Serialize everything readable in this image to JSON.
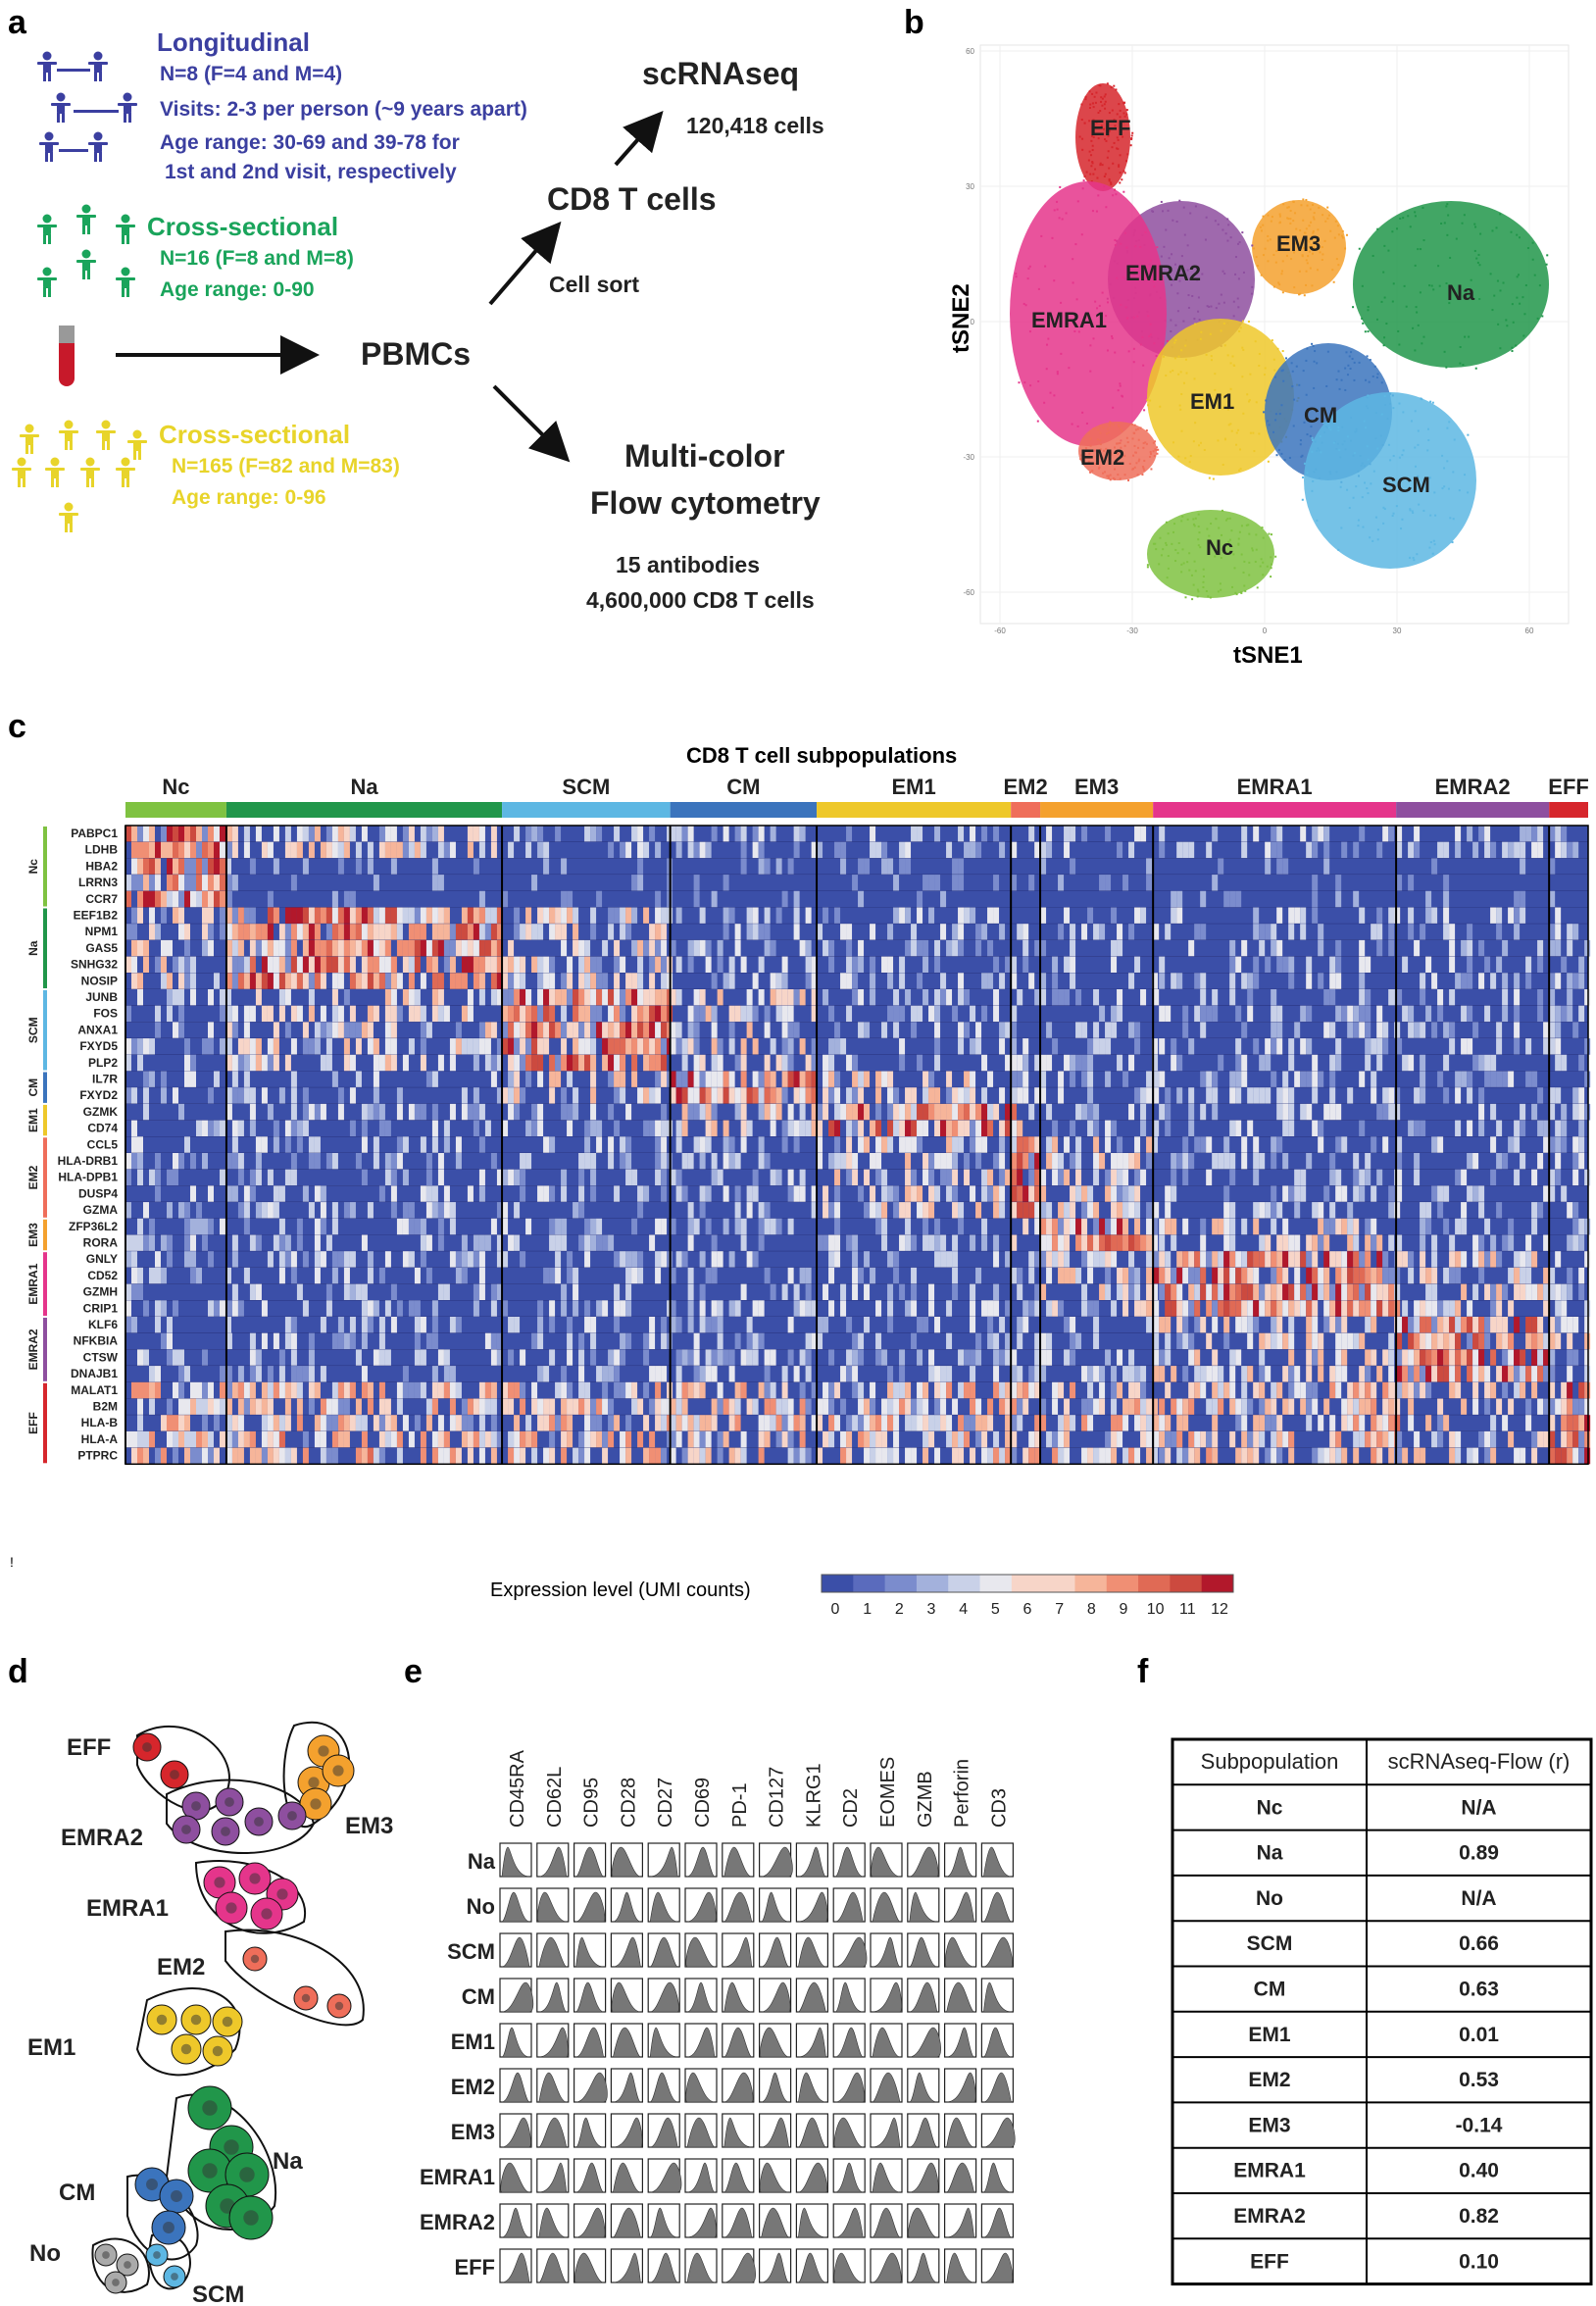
{
  "panel_labels": {
    "a": "a",
    "b": "b",
    "c": "c",
    "d": "d",
    "e": "e",
    "f": "f"
  },
  "colors": {
    "longitudinal": "#3b3fa0",
    "cross1": "#1aa45b",
    "cross2": "#e8d42a",
    "Nc": "#7fc241",
    "Na": "#21964a",
    "SCM": "#5db7e3",
    "CM": "#3b74bd",
    "EM1": "#eec82a",
    "EM2": "#ef6e5a",
    "EM3": "#f4a12e",
    "EMRA1": "#e5358b",
    "EMRA2": "#8e4f9f",
    "EFF": "#d6262c",
    "heat_low": "#3b4fa8",
    "heat_high": "#b2182b"
  },
  "panel_a": {
    "longitudinal": {
      "title": "Longitudinal",
      "lines": [
        "N=8 (F=4 and M=4)",
        "Visits: 2-3 per person (~9 years apart)",
        "Age range: 30-69 and 39-78 for",
        "1st and 2nd visit, respectively"
      ]
    },
    "cross1": {
      "title": "Cross-sectional",
      "lines": [
        "N=16 (F=8 and M=8)",
        "Age range: 0-90"
      ]
    },
    "cross2": {
      "title": "Cross-sectional",
      "lines": [
        "N=165 (F=82 and M=83)",
        "Age range: 0-96"
      ]
    },
    "pbmcs": "PBMCs",
    "cd8": "CD8 T cells",
    "cell_sort": "Cell sort",
    "scrna": "scRNAseq",
    "scrna_cells": "120,418 cells",
    "flow1": "Multi-color",
    "flow2": "Flow cytometry",
    "antibodies": "15 antibodies",
    "cd8_count": "4,600,000 CD8 T cells"
  },
  "panel_b": {
    "xlabel": "tSNE1",
    "ylabel": "tSNE2",
    "xticks": [
      "-60",
      "-30",
      "0",
      "30",
      "60"
    ],
    "yticks": [
      "60",
      "30",
      "0",
      "-30",
      "-60"
    ],
    "clusters": [
      "EFF",
      "EM3",
      "EMRA2",
      "EMRA1",
      "Na",
      "EM1",
      "CM",
      "EM2",
      "SCM",
      "Nc"
    ]
  },
  "panel_c": {
    "title": "CD8 T cell subpopulations",
    "subpops": [
      "Nc",
      "Na",
      "SCM",
      "CM",
      "EM1",
      "EM2",
      "EM3",
      "EMRA1",
      "EMRA2",
      "EFF"
    ],
    "gene_groups": [
      {
        "name": "Nc",
        "genes": [
          "PABPC1",
          "LDHB",
          "HBA2",
          "LRRN3",
          "CCR7"
        ]
      },
      {
        "name": "Na",
        "genes": [
          "EEF1B2",
          "NPM1",
          "GAS5",
          "SNHG32",
          "NOSIP"
        ]
      },
      {
        "name": "SCM",
        "genes": [
          "JUNB",
          "FOS",
          "ANXA1",
          "FXYD5",
          "PLP2"
        ]
      },
      {
        "name": "CM",
        "genes": [
          "IL7R",
          "FXYD2"
        ]
      },
      {
        "name": "EM1",
        "genes": [
          "GZMK",
          "CD74"
        ]
      },
      {
        "name": "EM2",
        "genes": [
          "CCL5",
          "HLA-DRB1",
          "HLA-DPB1",
          "DUSP4",
          "GZMA"
        ]
      },
      {
        "name": "EM3",
        "genes": [
          "ZFP36L2",
          "RORA"
        ]
      },
      {
        "name": "EMRA1",
        "genes": [
          "GNLY",
          "CD52",
          "GZMH",
          "CRIP1"
        ]
      },
      {
        "name": "EMRA2",
        "genes": [
          "KLF6",
          "NFKBIA",
          "CTSW",
          "DNAJB1"
        ]
      },
      {
        "name": "EFF",
        "genes": [
          "MALAT1",
          "B2M",
          "HLA-B",
          "HLA-A",
          "PTPRC"
        ]
      }
    ],
    "legend_label": "Expression level (UMI counts)",
    "legend_ticks": [
      "0",
      "1",
      "2",
      "3",
      "4",
      "5",
      "6",
      "7",
      "8",
      "9",
      "10",
      "11",
      "12"
    ],
    "footnote": "!"
  },
  "panel_d": {
    "labels": [
      "EFF",
      "EM3",
      "EMRA2",
      "EMRA1",
      "EM2",
      "EM1",
      "Na",
      "CM",
      "No",
      "SCM"
    ]
  },
  "panel_e": {
    "markers": [
      "CD45RA",
      "CD62L",
      "CD95",
      "CD28",
      "CD27",
      "CD69",
      "PD-1",
      "CD127",
      "KLRG1",
      "CD2",
      "EOMES",
      "GZMB",
      "Perforin",
      "CD3"
    ],
    "rows": [
      "Na",
      "No",
      "SCM",
      "CM",
      "EM1",
      "EM2",
      "EM3",
      "EMRA1",
      "EMRA2",
      "EFF"
    ]
  },
  "panel_f": {
    "headers": [
      "Subpopulation",
      "scRNAseq-Flow (r)"
    ],
    "rows": [
      [
        "Nc",
        "N/A"
      ],
      [
        "Na",
        "0.89"
      ],
      [
        "No",
        "N/A"
      ],
      [
        "SCM",
        "0.66"
      ],
      [
        "CM",
        "0.63"
      ],
      [
        "EM1",
        "0.01"
      ],
      [
        "EM2",
        "0.53"
      ],
      [
        "EM3",
        "-0.14"
      ],
      [
        "EMRA1",
        "0.40"
      ],
      [
        "EMRA2",
        "0.82"
      ],
      [
        "EFF",
        "0.10"
      ]
    ]
  }
}
